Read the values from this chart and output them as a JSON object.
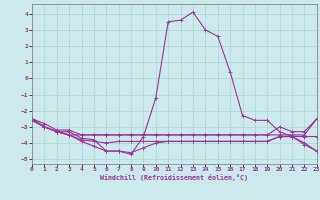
{
  "title": "",
  "xlabel": "Windchill (Refroidissement éolien,°C)",
  "background_color": "#cceaeb",
  "grid_color": "#aad4d5",
  "line_color": "#993399",
  "xlim": [
    0,
    23
  ],
  "ylim": [
    -5.3,
    4.6
  ],
  "yticks": [
    -5,
    -4,
    -3,
    -2,
    -1,
    0,
    1,
    2,
    3,
    4
  ],
  "xticks": [
    0,
    1,
    2,
    3,
    4,
    5,
    6,
    7,
    8,
    9,
    10,
    11,
    12,
    13,
    14,
    15,
    16,
    17,
    18,
    19,
    20,
    21,
    22,
    23
  ],
  "line1_x": [
    0,
    1,
    2,
    3,
    4,
    5,
    6,
    7,
    8,
    9,
    10,
    11,
    12,
    13,
    14,
    15,
    16,
    17,
    18,
    19,
    20,
    21,
    22,
    23
  ],
  "line1_y": [
    -2.5,
    -3.0,
    -3.3,
    -3.3,
    -3.7,
    -3.8,
    -4.5,
    -4.5,
    -4.7,
    -3.6,
    -1.2,
    3.5,
    3.6,
    4.1,
    3.0,
    2.6,
    0.4,
    -2.3,
    -2.6,
    -2.6,
    -3.3,
    -3.6,
    -4.1,
    -4.5
  ],
  "line2_x": [
    0,
    1,
    2,
    3,
    4,
    5,
    6,
    7,
    8,
    9,
    10,
    11,
    12,
    13,
    14,
    15,
    16,
    17,
    18,
    19,
    20,
    21,
    22,
    23
  ],
  "line2_y": [
    -2.5,
    -2.8,
    -3.2,
    -3.2,
    -3.5,
    -3.5,
    -3.5,
    -3.5,
    -3.5,
    -3.5,
    -3.5,
    -3.5,
    -3.5,
    -3.5,
    -3.5,
    -3.5,
    -3.5,
    -3.5,
    -3.5,
    -3.5,
    -3.0,
    -3.3,
    -3.3,
    -2.5
  ],
  "line3_x": [
    0,
    1,
    2,
    3,
    4,
    5,
    6,
    7,
    8,
    9,
    10,
    11,
    12,
    13,
    14,
    15,
    16,
    17,
    18,
    19,
    20,
    21,
    22,
    23
  ],
  "line3_y": [
    -2.5,
    -3.0,
    -3.3,
    -3.5,
    -3.5,
    -3.5,
    -3.5,
    -3.5,
    -3.5,
    -3.5,
    -3.5,
    -3.5,
    -3.5,
    -3.5,
    -3.5,
    -3.5,
    -3.5,
    -3.5,
    -3.5,
    -3.5,
    -3.5,
    -3.5,
    -3.5,
    -2.5
  ],
  "line4_x": [
    0,
    1,
    2,
    3,
    4,
    5,
    6,
    7,
    8,
    9,
    10,
    11,
    12,
    13,
    14,
    15,
    16,
    17,
    18,
    19,
    20,
    21,
    22,
    23
  ],
  "line4_y": [
    -2.6,
    -3.0,
    -3.3,
    -3.5,
    -3.8,
    -3.9,
    -4.0,
    -3.9,
    -3.9,
    -3.9,
    -3.9,
    -3.9,
    -3.9,
    -3.9,
    -3.9,
    -3.9,
    -3.9,
    -3.9,
    -3.9,
    -3.9,
    -3.6,
    -3.6,
    -3.6,
    -3.6
  ],
  "line5_x": [
    0,
    1,
    2,
    3,
    4,
    5,
    6,
    7,
    8,
    9,
    10,
    11,
    12,
    13,
    14,
    15,
    16,
    17,
    18,
    19,
    20,
    21,
    22,
    23
  ],
  "line5_y": [
    -2.6,
    -3.0,
    -3.3,
    -3.5,
    -3.9,
    -4.2,
    -4.5,
    -4.5,
    -4.6,
    -4.3,
    -4.0,
    -3.9,
    -3.9,
    -3.9,
    -3.9,
    -3.9,
    -3.9,
    -3.9,
    -3.9,
    -3.9,
    -3.6,
    -3.6,
    -4.0,
    -4.5
  ]
}
